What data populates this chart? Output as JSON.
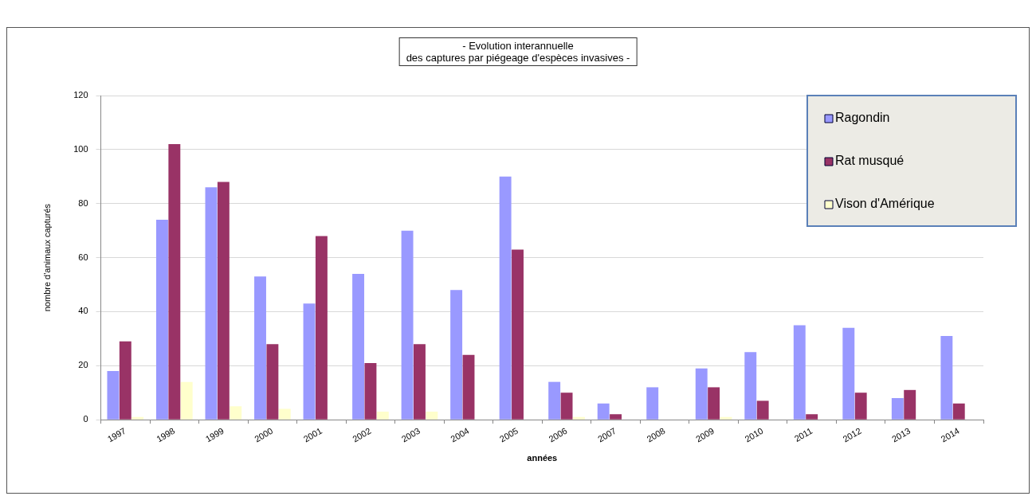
{
  "chart_data": {
    "type": "bar",
    "title": "- Evolution interannuelle\ndes captures par piégeage d'espèces invasives -",
    "xlabel": "années",
    "ylabel": "nombre d'animaux capturés",
    "categories": [
      "1997",
      "1998",
      "1999",
      "2000",
      "2001",
      "2002",
      "2003",
      "2004",
      "2005",
      "2006",
      "2007",
      "2008",
      "2009",
      "2010",
      "2011",
      "2012",
      "2013",
      "2014"
    ],
    "series": [
      {
        "name": "Ragondin",
        "color": "#9999ff",
        "values": [
          18,
          74,
          86,
          53,
          43,
          54,
          70,
          48,
          90,
          14,
          6,
          12,
          19,
          25,
          35,
          34,
          8,
          31
        ]
      },
      {
        "name": "Rat musqué",
        "color": "#993366",
        "values": [
          29,
          102,
          88,
          28,
          68,
          21,
          28,
          24,
          63,
          10,
          2,
          null,
          12,
          7,
          2,
          10,
          11,
          6
        ]
      },
      {
        "name": "Vison d'Amérique",
        "color": "#ffffcc",
        "values": [
          1,
          14,
          5,
          4,
          null,
          3,
          3,
          null,
          null,
          1,
          null,
          null,
          1,
          null,
          null,
          null,
          null,
          null
        ]
      }
    ],
    "ylim": [
      0,
      120
    ],
    "yticks": [
      0,
      20,
      40,
      60,
      80,
      100,
      120
    ],
    "grid": "y",
    "legend": "top right"
  }
}
